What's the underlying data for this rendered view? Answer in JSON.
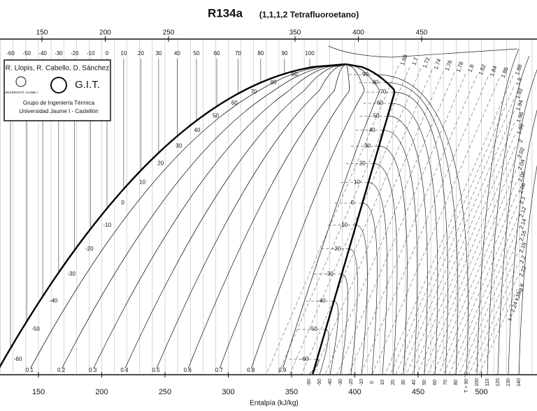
{
  "title": "R134a",
  "subtitle": "(1,1,1,2 Tetrafluoroetano)",
  "credits": {
    "authors": "R. Llopis, R. Cabello, D. Sánchez",
    "university": "UNIVERSITAT JAUME·I",
    "logo": "G.I.T.",
    "group": "Grupo de Ingeniería Térmica",
    "institution": "Universidad Jaume I - Castellón"
  },
  "top_enthalpy_ticks": [
    150,
    200,
    250,
    350,
    400,
    450
  ],
  "top_temperature_ticks": [
    -60,
    -50,
    -40,
    -30,
    -20,
    -10,
    0,
    10,
    20,
    30,
    40,
    50,
    60,
    70,
    80,
    90,
    100
  ],
  "bottom_axis": {
    "label": "Entalpía (kJ/kg)",
    "ticks": [
      150,
      200,
      250,
      300,
      350,
      400,
      450,
      500
    ]
  },
  "quality_labels": [
    0.1,
    0.2,
    0.3,
    0.4,
    0.5,
    0.6,
    0.7,
    0.8,
    0.9
  ],
  "liquid_temperatures": [
    90,
    80,
    70,
    60,
    50,
    40,
    30,
    20,
    10,
    0,
    -10,
    -20,
    -30,
    -40,
    -50,
    -60
  ],
  "vapor_temperatures": [
    90,
    80,
    70,
    60,
    50,
    40,
    30,
    20,
    10,
    0,
    -10,
    -20,
    -30,
    -40,
    -50,
    -60
  ],
  "entropy_labels": [
    "1.68",
    "1.7",
    "1.72",
    "1.74",
    "1.76",
    "1.78",
    "1.8",
    "1.82",
    "1.84",
    "1.86",
    "1.88",
    "1.9",
    "1.92",
    "1.94",
    "1.96",
    "1.98",
    "2",
    "2.02",
    "2.04",
    "2.06",
    "2.08",
    "2.1",
    "2.12",
    "2.14",
    "2.16",
    "2.18",
    "2.2",
    "2.22",
    "s = 2.24 kJ/kg K"
  ],
  "bottom_isotherm_labels": [
    "-60",
    "-50",
    "-40",
    "-30",
    "-20",
    "-10",
    "0",
    "10",
    "20",
    "30",
    "40",
    "50",
    "60",
    "70",
    "80",
    "T = 90 °C",
    "100",
    "110",
    "120",
    "130",
    "140"
  ]
}
